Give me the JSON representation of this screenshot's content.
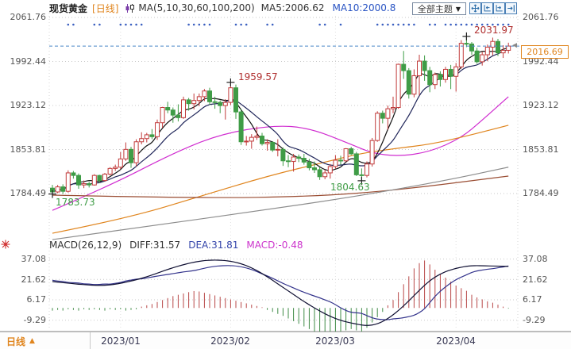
{
  "header": {
    "title": "现货黄金",
    "period_tag": "[日线]",
    "ma_label": "MA(5,10,30,60,100,200)",
    "ma5_label": "MA5:2006.62",
    "ma10_label": "MA10:2000.8",
    "theme_dropdown": "全部主题",
    "dropdown_arrow": "▼"
  },
  "toolbar": {
    "button_names": [
      "pan-crosshair",
      "range-left",
      "range-right",
      "jump-to-latest"
    ]
  },
  "bottom_bar": {
    "period_label": "日线",
    "period_arrow": "▲"
  },
  "colors": {
    "up": "#c13b3b",
    "down": "#3f9c46",
    "ma5": "#141414",
    "ma10": "#20265a",
    "ma30": "#d02cd0",
    "ma60": "#e0851e",
    "ma100": "#9a4d33",
    "ma200": "#8c8c8c",
    "diff": "#101033",
    "dea": "#34348c",
    "hist_pos": "#b84848",
    "hist_neg": "#3f8b46",
    "last_price": "#e0851e",
    "dashed_line": "#4a86c8",
    "marker_high": "#b03030",
    "marker_low": "#3f9c46",
    "top_dot": "#3a5fc0",
    "grid": "#c9c9c9"
  },
  "chart_data": [
    {
      "type": "candlestick",
      "title": "现货黄金 [日线]",
      "y_ticks": [
        2061.76,
        1992.44,
        1923.12,
        1853.81,
        1784.49
      ],
      "x_ticks": [
        {
          "label": "2023/01",
          "index": 13
        },
        {
          "label": "2023/02",
          "index": 34
        },
        {
          "label": "2023/03",
          "index": 54
        },
        {
          "label": "2023/04",
          "index": 77
        }
      ],
      "last_price": 2016.69,
      "annotations": [
        {
          "label": 1959.57,
          "index": 34,
          "kind": "high"
        },
        {
          "label": 2031.97,
          "index": 79,
          "kind": "high"
        },
        {
          "label": 1804.63,
          "index": 59,
          "kind": "low"
        },
        {
          "label": 1783.73,
          "index": 0,
          "kind": "low"
        }
      ],
      "top_markers": [
        3,
        4,
        8,
        9,
        13,
        14,
        15,
        16,
        17,
        26,
        27,
        28,
        29,
        30,
        35,
        36,
        37,
        41,
        42,
        51,
        52,
        55,
        62,
        63,
        64,
        65,
        66,
        67,
        68,
        69,
        72,
        73,
        75,
        76,
        77,
        78,
        79,
        80,
        81,
        82,
        83,
        84,
        85,
        86,
        87
      ],
      "candles": [
        [
          1793,
          1798,
          1783.73,
          1787
        ],
        [
          1787,
          1798,
          1785,
          1795
        ],
        [
          1795,
          1799,
          1784,
          1788
        ],
        [
          1788,
          1821,
          1786,
          1817
        ],
        [
          1817,
          1820,
          1808,
          1813
        ],
        [
          1813,
          1816,
          1792,
          1798
        ],
        [
          1798,
          1805,
          1793,
          1800
        ],
        [
          1800,
          1803,
          1794,
          1798
        ],
        [
          1798,
          1815,
          1797,
          1813
        ],
        [
          1813,
          1814,
          1801,
          1805
        ],
        [
          1805,
          1817,
          1803,
          1815
        ],
        [
          1815,
          1826,
          1813,
          1824
        ],
        [
          1824,
          1830,
          1820,
          1826
        ],
        [
          1826,
          1850,
          1823,
          1839
        ],
        [
          1839,
          1865,
          1836,
          1854
        ],
        [
          1854,
          1858,
          1825,
          1833
        ],
        [
          1833,
          1870,
          1827,
          1866
        ],
        [
          1866,
          1881,
          1862,
          1871
        ],
        [
          1871,
          1880,
          1865,
          1877
        ],
        [
          1877,
          1886,
          1870,
          1874
        ],
        [
          1874,
          1901,
          1869,
          1896
        ],
        [
          1896,
          1921,
          1888,
          1920
        ],
        [
          1920,
          1929,
          1911,
          1916
        ],
        [
          1916,
          1920,
          1896,
          1908
        ],
        [
          1908,
          1925,
          1898,
          1904
        ],
        [
          1904,
          1937,
          1902,
          1932
        ],
        [
          1932,
          1935,
          1915,
          1926
        ],
        [
          1926,
          1942,
          1917,
          1931
        ],
        [
          1931,
          1942,
          1922,
          1937
        ],
        [
          1937,
          1949,
          1930,
          1946
        ],
        [
          1946,
          1951,
          1924,
          1929
        ],
        [
          1929,
          1937,
          1918,
          1928
        ],
        [
          1928,
          1931,
          1911,
          1923
        ],
        [
          1923,
          1933,
          1901,
          1928
        ],
        [
          1928,
          1959.57,
          1924,
          1951
        ],
        [
          1951,
          1956,
          1902,
          1913
        ],
        [
          1913,
          1918,
          1861,
          1866
        ],
        [
          1866,
          1875,
          1860,
          1867
        ],
        [
          1867,
          1878,
          1855,
          1873
        ],
        [
          1873,
          1890,
          1869,
          1875
        ],
        [
          1875,
          1880,
          1860,
          1863
        ],
        [
          1863,
          1870,
          1852,
          1865
        ],
        [
          1865,
          1867,
          1850,
          1853
        ],
        [
          1853,
          1870,
          1843,
          1854
        ],
        [
          1854,
          1857,
          1828,
          1836
        ],
        [
          1836,
          1845,
          1826,
          1835
        ],
        [
          1835,
          1847,
          1819,
          1842
        ],
        [
          1842,
          1846,
          1834,
          1840
        ],
        [
          1840,
          1847,
          1830,
          1834
        ],
        [
          1834,
          1839,
          1821,
          1825
        ],
        [
          1825,
          1835,
          1817,
          1822
        ],
        [
          1822,
          1826,
          1806,
          1811
        ],
        [
          1811,
          1822,
          1807,
          1817
        ],
        [
          1817,
          1831,
          1808,
          1827
        ],
        [
          1827,
          1845,
          1824,
          1837
        ],
        [
          1837,
          1844,
          1830,
          1836
        ],
        [
          1836,
          1856,
          1834,
          1855
        ],
        [
          1855,
          1858,
          1845,
          1847
        ],
        [
          1847,
          1850,
          1812,
          1814
        ],
        [
          1814,
          1824,
          1804.63,
          1813
        ],
        [
          1813,
          1835,
          1810,
          1831
        ],
        [
          1831,
          1872,
          1827,
          1868
        ],
        [
          1868,
          1914,
          1866,
          1911
        ],
        [
          1911,
          1915,
          1895,
          1903
        ],
        [
          1903,
          1923,
          1885,
          1918
        ],
        [
          1918,
          1937,
          1911,
          1920
        ],
        [
          1920,
          1989,
          1918,
          1988
        ],
        [
          1988,
          2009,
          1965,
          1978
        ],
        [
          1978,
          1982,
          1934,
          1941
        ],
        [
          1941,
          1980,
          1936,
          1970
        ],
        [
          1970,
          2003,
          1939,
          1993
        ],
        [
          1993,
          2002,
          1962,
          1978
        ],
        [
          1978,
          1984,
          1944,
          1956
        ],
        [
          1956,
          1975,
          1949,
          1972
        ],
        [
          1972,
          1977,
          1953,
          1964
        ],
        [
          1964,
          1984,
          1959,
          1980
        ],
        [
          1980,
          1987,
          1949,
          1969
        ],
        [
          1969,
          1990,
          1945,
          1984
        ],
        [
          1984,
          2026,
          1981,
          2021
        ],
        [
          2021,
          2031.97,
          2015,
          2020
        ],
        [
          2020,
          2023,
          2003,
          2009
        ],
        [
          2009,
          2014,
          1989,
          1992
        ],
        [
          1992,
          2008,
          1986,
          2003
        ],
        [
          2003,
          2019,
          1993,
          2015
        ],
        [
          2015,
          2030,
          2002,
          2024
        ],
        [
          2024,
          2028,
          2001,
          2006
        ],
        [
          2006,
          2018,
          1998,
          2010
        ],
        [
          2010,
          2022,
          2005,
          2016.69
        ]
      ],
      "ma_computed": [
        {
          "name": "MA5",
          "period": 5,
          "color_key": "ma5"
        },
        {
          "name": "MA10",
          "period": 10,
          "color_key": "ma10"
        }
      ],
      "ma_series": [
        {
          "name": "MA30",
          "color_key": "ma30",
          "points": [
            [
              0,
              1758
            ],
            [
              11,
              1797
            ],
            [
              23,
              1848
            ],
            [
              32,
              1878
            ],
            [
              42,
              1892
            ],
            [
              49,
              1888
            ],
            [
              57,
              1862
            ],
            [
              61,
              1848
            ],
            [
              66,
              1843
            ],
            [
              72,
              1850
            ],
            [
              78,
              1872
            ],
            [
              82,
              1900
            ],
            [
              87,
              1937
            ]
          ]
        },
        {
          "name": "MA60",
          "color_key": "ma60",
          "points": [
            [
              0,
              1722
            ],
            [
              14,
              1745
            ],
            [
              29,
              1782
            ],
            [
              41,
              1812
            ],
            [
              53,
              1836
            ],
            [
              59,
              1848
            ],
            [
              66,
              1856
            ],
            [
              72,
              1862
            ],
            [
              78,
              1873
            ],
            [
              87,
              1892
            ]
          ]
        },
        {
          "name": "MA100",
          "color_key": "ma100",
          "points": [
            [
              0,
              1782
            ],
            [
              28,
              1777
            ],
            [
              50,
              1780
            ],
            [
              66,
              1790
            ],
            [
              87,
              1812
            ]
          ]
        },
        {
          "name": "MA200",
          "color_key": "ma200",
          "points": [
            [
              0,
              1712
            ],
            [
              20,
              1735
            ],
            [
              40,
              1758
            ],
            [
              58,
              1780
            ],
            [
              75,
              1805
            ],
            [
              87,
              1826
            ]
          ]
        }
      ]
    },
    {
      "type": "macd",
      "params_label": "MACD(26,12,9)",
      "diff_label": "DIFF:31.57",
      "dea_label": "DEA:31.81",
      "macd_label": "MACD:-0.48",
      "y_ticks": [
        37.08,
        21.62,
        6.17,
        -9.29
      ],
      "diff": [
        20,
        19.6,
        19.2,
        18.8,
        18.4,
        18,
        17.7,
        17.4,
        17.2,
        17.1,
        17.2,
        17.5,
        18,
        18.7,
        19.5,
        20.4,
        21.4,
        22.5,
        23.7,
        25,
        26.4,
        27.8,
        29.2,
        30.5,
        31.7,
        32.8,
        33.8,
        34.7,
        35.4,
        35.9,
        36.2,
        36.3,
        36.2,
        35.9,
        35.4,
        34.6,
        33.5,
        32.1,
        30.4,
        28.4,
        26.1,
        23.6,
        21,
        18.3,
        15.6,
        12.9,
        10.2,
        7.5,
        4.9,
        2.4,
        0,
        -2.3,
        -4.4,
        -6.3,
        -8,
        -9.4,
        -10.5,
        -11.4,
        -12.2,
        -13,
        -13.3,
        -13,
        -12,
        -10.3,
        -8,
        -5.2,
        -2,
        1.6,
        5.4,
        9.4,
        13.4,
        17.2,
        20.6,
        23.4,
        25.7,
        27.5,
        28.9,
        30,
        30.9,
        31.6,
        32,
        32.1,
        32,
        31.9,
        31.8,
        31.7,
        31.6,
        31.57
      ],
      "hist": [
        -2,
        -1.5,
        -2,
        -1,
        -1.5,
        -2,
        -1,
        -1.5,
        -1,
        -1.5,
        -2,
        -1,
        -1.5,
        -1,
        -2,
        -1.5,
        -1,
        1,
        2,
        3,
        4.5,
        6,
        7.5,
        9,
        10,
        11,
        12,
        12.8,
        12.5,
        11.5,
        10.5,
        9.5,
        8.5,
        7.5,
        6.5,
        5.5,
        4.5,
        3.5,
        2.5,
        1.5,
        0.5,
        -1.5,
        -3,
        -4.5,
        -6,
        -8,
        -10,
        -12,
        -14,
        -16,
        -18,
        -20,
        -21,
        -22,
        -21,
        -19,
        -17,
        -16,
        -17,
        -18,
        -15,
        -11,
        -7,
        -3,
        2,
        6,
        12,
        18,
        24,
        30,
        34,
        36,
        33,
        29,
        26,
        23,
        20,
        17,
        15,
        13,
        10,
        8,
        6.5,
        5,
        4,
        2.5,
        1,
        -0.48
      ]
    }
  ]
}
